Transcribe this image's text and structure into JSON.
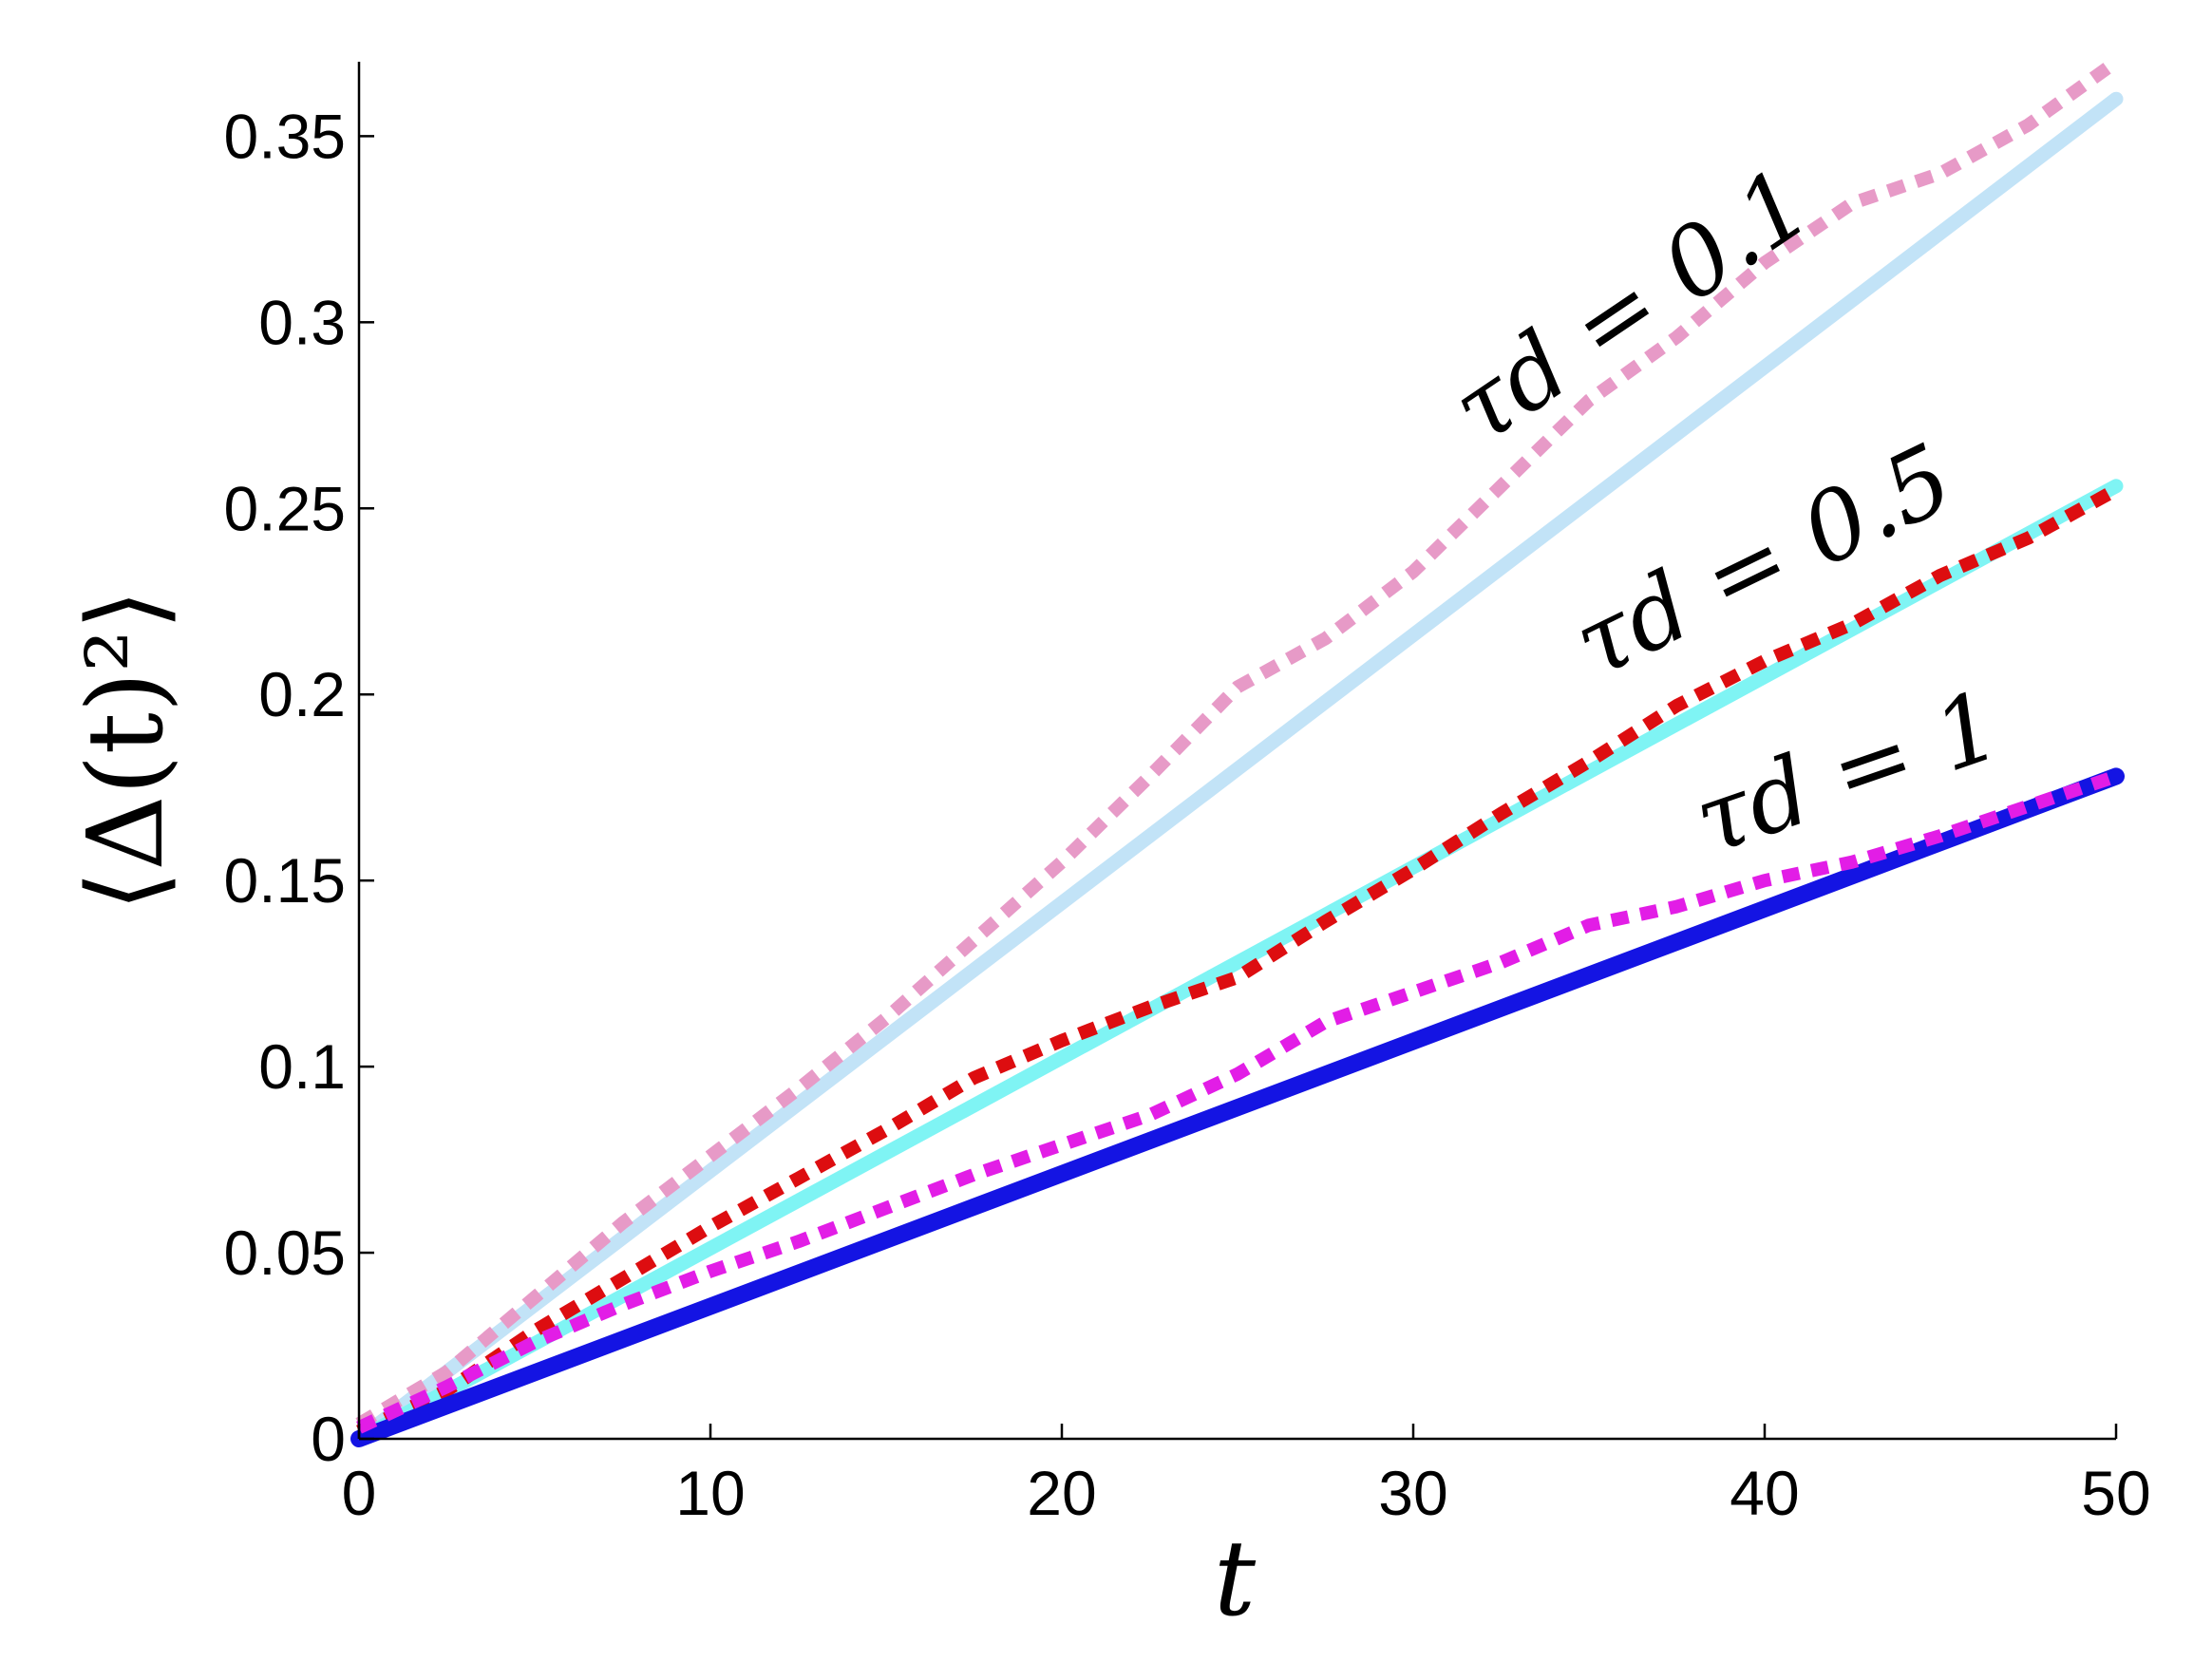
{
  "chart_data": {
    "type": "line",
    "title": "",
    "xlabel": "t",
    "ylabel": "⟨Δ(t)²⟩",
    "xlim": [
      0,
      50
    ],
    "ylim": [
      0,
      0.37
    ],
    "grid": false,
    "x_ticks": [
      0,
      10,
      20,
      30,
      40,
      50
    ],
    "y_ticks": [
      0,
      0.05,
      0.1,
      0.15,
      0.2,
      0.25,
      0.3,
      0.35
    ],
    "x_tick_labels": [
      "0",
      "10",
      "20",
      "30",
      "40",
      "50"
    ],
    "y_tick_labels": [
      "0",
      "0.05",
      "0.1",
      "0.15",
      "0.2",
      "0.25",
      "0.3",
      "0.35"
    ],
    "annotations": [
      {
        "text": "τd = 0.1",
        "series": "tau_0.1"
      },
      {
        "text": "τd = 0.5",
        "series": "tau_0.5"
      },
      {
        "text": "τd = 1",
        "series": "tau_1"
      }
    ],
    "series": [
      {
        "id": "tau_0.1_theory",
        "group": "tau_0.1",
        "style": "solid",
        "color": "#c2e3f7",
        "x": [
          0,
          50
        ],
        "y": [
          0.0,
          0.36
        ]
      },
      {
        "id": "tau_0.1_sim",
        "group": "tau_0.1",
        "style": "dotted",
        "color": "#e79ac7",
        "x": [
          0,
          2.5,
          5,
          7.5,
          10,
          12.5,
          15,
          17.5,
          20,
          22.5,
          25,
          27.5,
          30,
          32.5,
          35,
          37.5,
          40,
          42.5,
          45,
          47.5,
          50
        ],
        "y": [
          0.004,
          0.018,
          0.038,
          0.058,
          0.076,
          0.094,
          0.113,
          0.134,
          0.155,
          0.178,
          0.202,
          0.215,
          0.233,
          0.256,
          0.279,
          0.296,
          0.316,
          0.332,
          0.34,
          0.353,
          0.37
        ]
      },
      {
        "id": "tau_0.5_theory",
        "group": "tau_0.5",
        "style": "solid",
        "color": "#7ff4f4",
        "x": [
          0,
          50
        ],
        "y": [
          0.0,
          0.256
        ]
      },
      {
        "id": "tau_0.5_sim",
        "group": "tau_0.5",
        "style": "dotted",
        "color": "#dd0d10",
        "x": [
          0,
          2.5,
          5,
          7.5,
          10,
          12.5,
          15,
          17.5,
          20,
          22.5,
          25,
          27.5,
          30,
          32.5,
          35,
          37.5,
          40,
          42.5,
          45,
          47.5,
          50
        ],
        "y": [
          0.002,
          0.013,
          0.029,
          0.043,
          0.057,
          0.07,
          0.083,
          0.097,
          0.107,
          0.116,
          0.124,
          0.139,
          0.153,
          0.168,
          0.182,
          0.197,
          0.209,
          0.219,
          0.232,
          0.242,
          0.255
        ]
      },
      {
        "id": "tau_1_theory",
        "group": "tau_1",
        "style": "solid",
        "color": "#1414e3",
        "x": [
          0,
          50
        ],
        "y": [
          0.0,
          0.178
        ]
      },
      {
        "id": "tau_1_sim",
        "group": "tau_1",
        "style": "dotted",
        "color": "#e21de6",
        "x": [
          0,
          2.5,
          5,
          7.5,
          10,
          12.5,
          15,
          17.5,
          20,
          22.5,
          25,
          27.5,
          30,
          32.5,
          35,
          37.5,
          40,
          42.5,
          45,
          47.5,
          50
        ],
        "y": [
          0.003,
          0.014,
          0.026,
          0.036,
          0.045,
          0.053,
          0.062,
          0.071,
          0.079,
          0.087,
          0.098,
          0.112,
          0.12,
          0.128,
          0.138,
          0.143,
          0.15,
          0.155,
          0.162,
          0.17,
          0.178
        ]
      }
    ]
  }
}
